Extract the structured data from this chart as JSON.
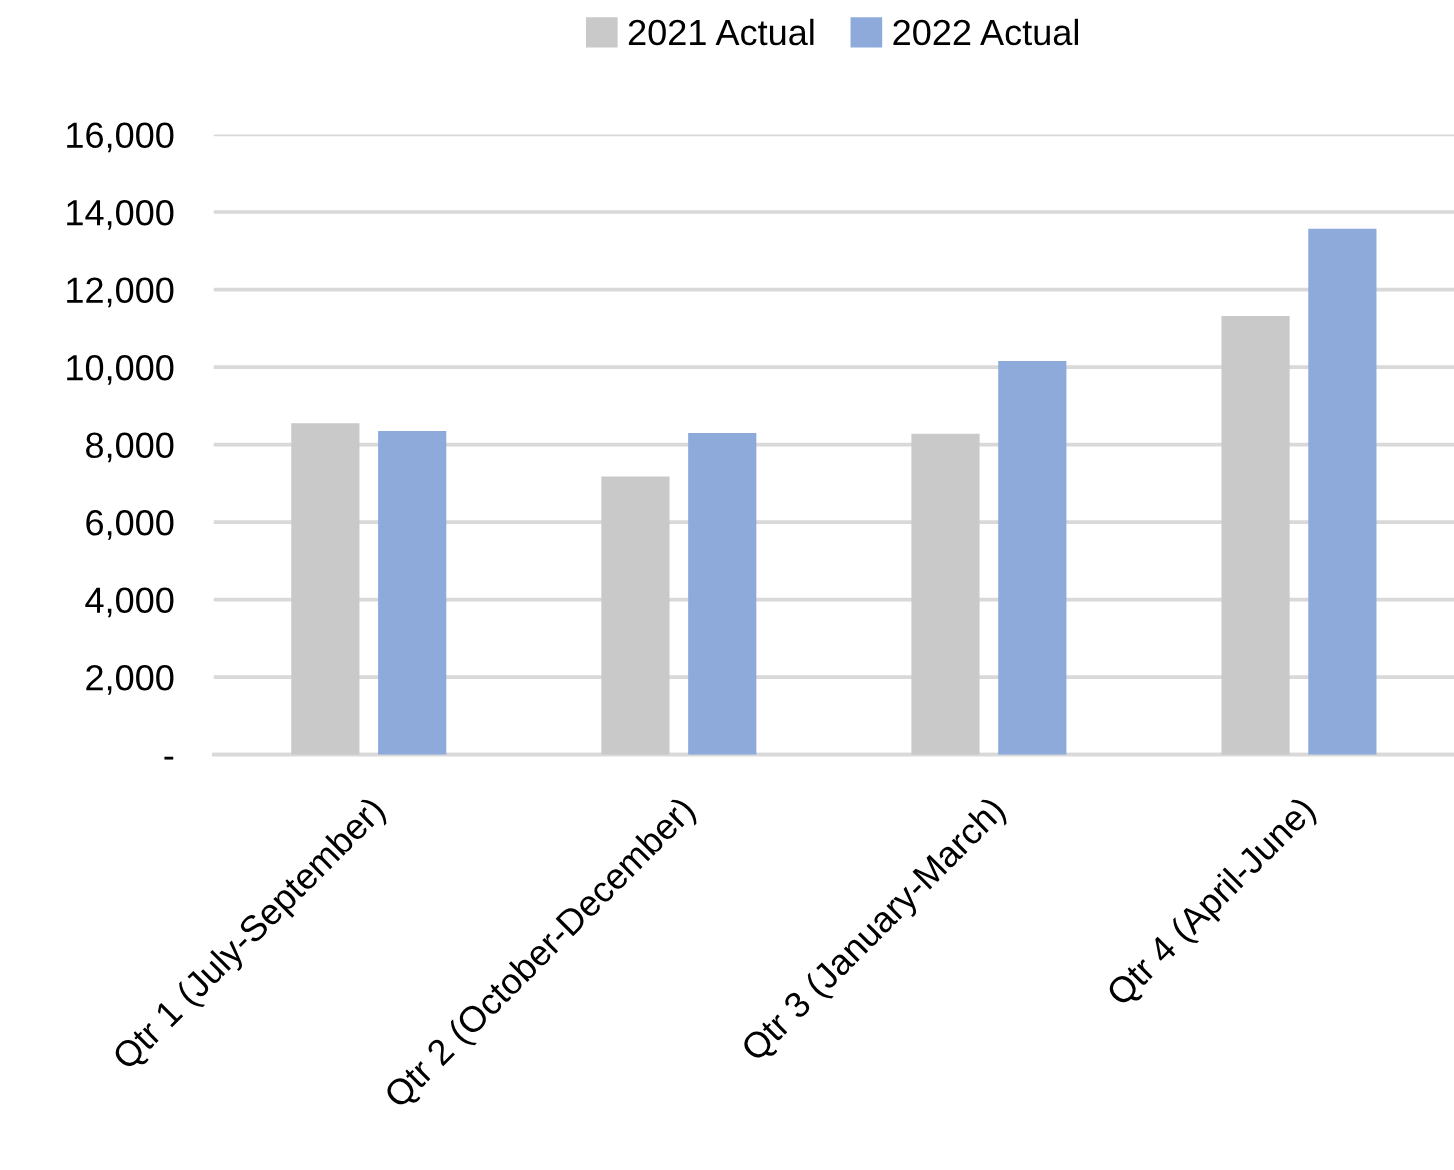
{
  "chart_data": {
    "type": "bar",
    "categories": [
      "Qtr 1 (July-September)",
      "Qtr 2 (October-December)",
      "Qtr 3 (January-March)",
      "Qtr 4 (April-June)"
    ],
    "series": [
      {
        "name": "2021 Actual",
        "color": "#c9c9c9",
        "values": [
          8550,
          7180,
          8280,
          11320
        ]
      },
      {
        "name": "2022 Actual",
        "color": "#8eaadb",
        "values": [
          8350,
          8300,
          10160,
          13570
        ]
      }
    ],
    "ylim": [
      0,
      16000
    ],
    "yticks": [
      {
        "value": 0,
        "label": "-"
      },
      {
        "value": 2000,
        "label": "2,000"
      },
      {
        "value": 4000,
        "label": "4,000"
      },
      {
        "value": 6000,
        "label": "6,000"
      },
      {
        "value": 8000,
        "label": "8,000"
      },
      {
        "value": 10000,
        "label": "10,000"
      },
      {
        "value": 12000,
        "label": "12,000"
      },
      {
        "value": 14000,
        "label": "14,000"
      },
      {
        "value": 16000,
        "label": "16,000"
      }
    ],
    "grid": "y",
    "legend": "top"
  }
}
